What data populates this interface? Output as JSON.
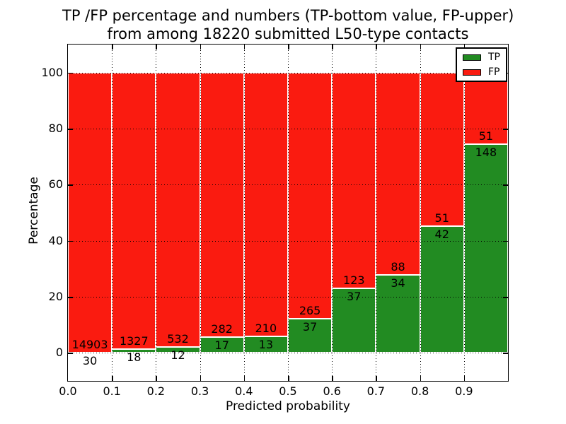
{
  "chart_data": {
    "type": "bar",
    "stacked": true,
    "units": "percent_of_bin_total",
    "title_line1": "TP /FP percentage and numbers (TP-bottom value, FP-upper)",
    "title_line2": "from among 18220 submitted L50-type contacts",
    "xlabel": "Predicted probability",
    "ylabel": "Percentage",
    "xlim": [
      0.0,
      1.0
    ],
    "ylim": [
      -10,
      110
    ],
    "xticks": [
      0.0,
      0.1,
      0.2,
      0.3,
      0.4,
      0.5,
      0.6,
      0.7,
      0.8,
      0.9
    ],
    "xtick_labels": [
      "0.0",
      "0.1",
      "0.2",
      "0.3",
      "0.4",
      "0.5",
      "0.6",
      "0.7",
      "0.8",
      "0.9"
    ],
    "yticks": [
      0,
      20,
      40,
      60,
      80,
      100
    ],
    "ytick_labels": [
      "0",
      "20",
      "40",
      "60",
      "80",
      "100"
    ],
    "grid": {
      "style": "dotted",
      "horizontal": true,
      "vertical": true
    },
    "total_submitted": 18220,
    "bins": [
      {
        "range": [
          0.0,
          0.1
        ],
        "tp": 30,
        "fp": 14903
      },
      {
        "range": [
          0.1,
          0.2
        ],
        "tp": 18,
        "fp": 1327
      },
      {
        "range": [
          0.2,
          0.3
        ],
        "tp": 12,
        "fp": 532
      },
      {
        "range": [
          0.3,
          0.4
        ],
        "tp": 17,
        "fp": 282
      },
      {
        "range": [
          0.4,
          0.5
        ],
        "tp": 13,
        "fp": 210
      },
      {
        "range": [
          0.5,
          0.6
        ],
        "tp": 37,
        "fp": 265
      },
      {
        "range": [
          0.6,
          0.7
        ],
        "tp": 37,
        "fp": 123
      },
      {
        "range": [
          0.7,
          0.8
        ],
        "tp": 34,
        "fp": 88
      },
      {
        "range": [
          0.8,
          0.9
        ],
        "tp": 42,
        "fp": 51
      },
      {
        "range": [
          0.9,
          1.0
        ],
        "tp": 148,
        "fp": 51
      }
    ],
    "legend": {
      "position": "upper right",
      "entries": [
        {
          "label": "TP",
          "color": "#228b22"
        },
        {
          "label": "FP",
          "color": "#fa1b10"
        }
      ]
    }
  },
  "colors": {
    "tp": "#228b22",
    "fp": "#fa1b10",
    "axis": "#000000",
    "grid": "#000000",
    "background": "#ffffff"
  }
}
